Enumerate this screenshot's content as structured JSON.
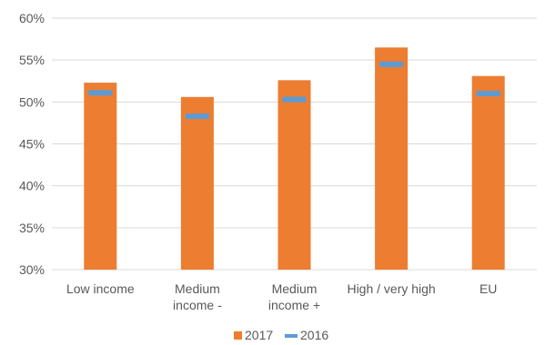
{
  "chart_data": {
    "type": "bar",
    "categories": [
      [
        "Low income"
      ],
      [
        "Medium",
        "income -"
      ],
      [
        "Medium",
        "income +"
      ],
      [
        "High / very high"
      ],
      [
        "EU"
      ]
    ],
    "series": [
      {
        "name": "2017",
        "type": "bar",
        "color": "#ED7D31",
        "values": [
          52.3,
          50.6,
          52.6,
          56.5,
          53.1
        ]
      },
      {
        "name": "2016",
        "type": "marker",
        "color": "#5B9BD5",
        "values": [
          51.1,
          48.3,
          50.3,
          54.5,
          51.0
        ]
      }
    ],
    "ylim": [
      30,
      60
    ],
    "yticks": [
      "30%",
      "35%",
      "40%",
      "45%",
      "50%",
      "55%",
      "60%"
    ],
    "ytick_values": [
      30,
      35,
      40,
      45,
      50,
      55,
      60
    ],
    "grid": true,
    "legend": "bottom-center"
  },
  "legend": {
    "item_2017": "2017",
    "item_2016": "2016"
  }
}
